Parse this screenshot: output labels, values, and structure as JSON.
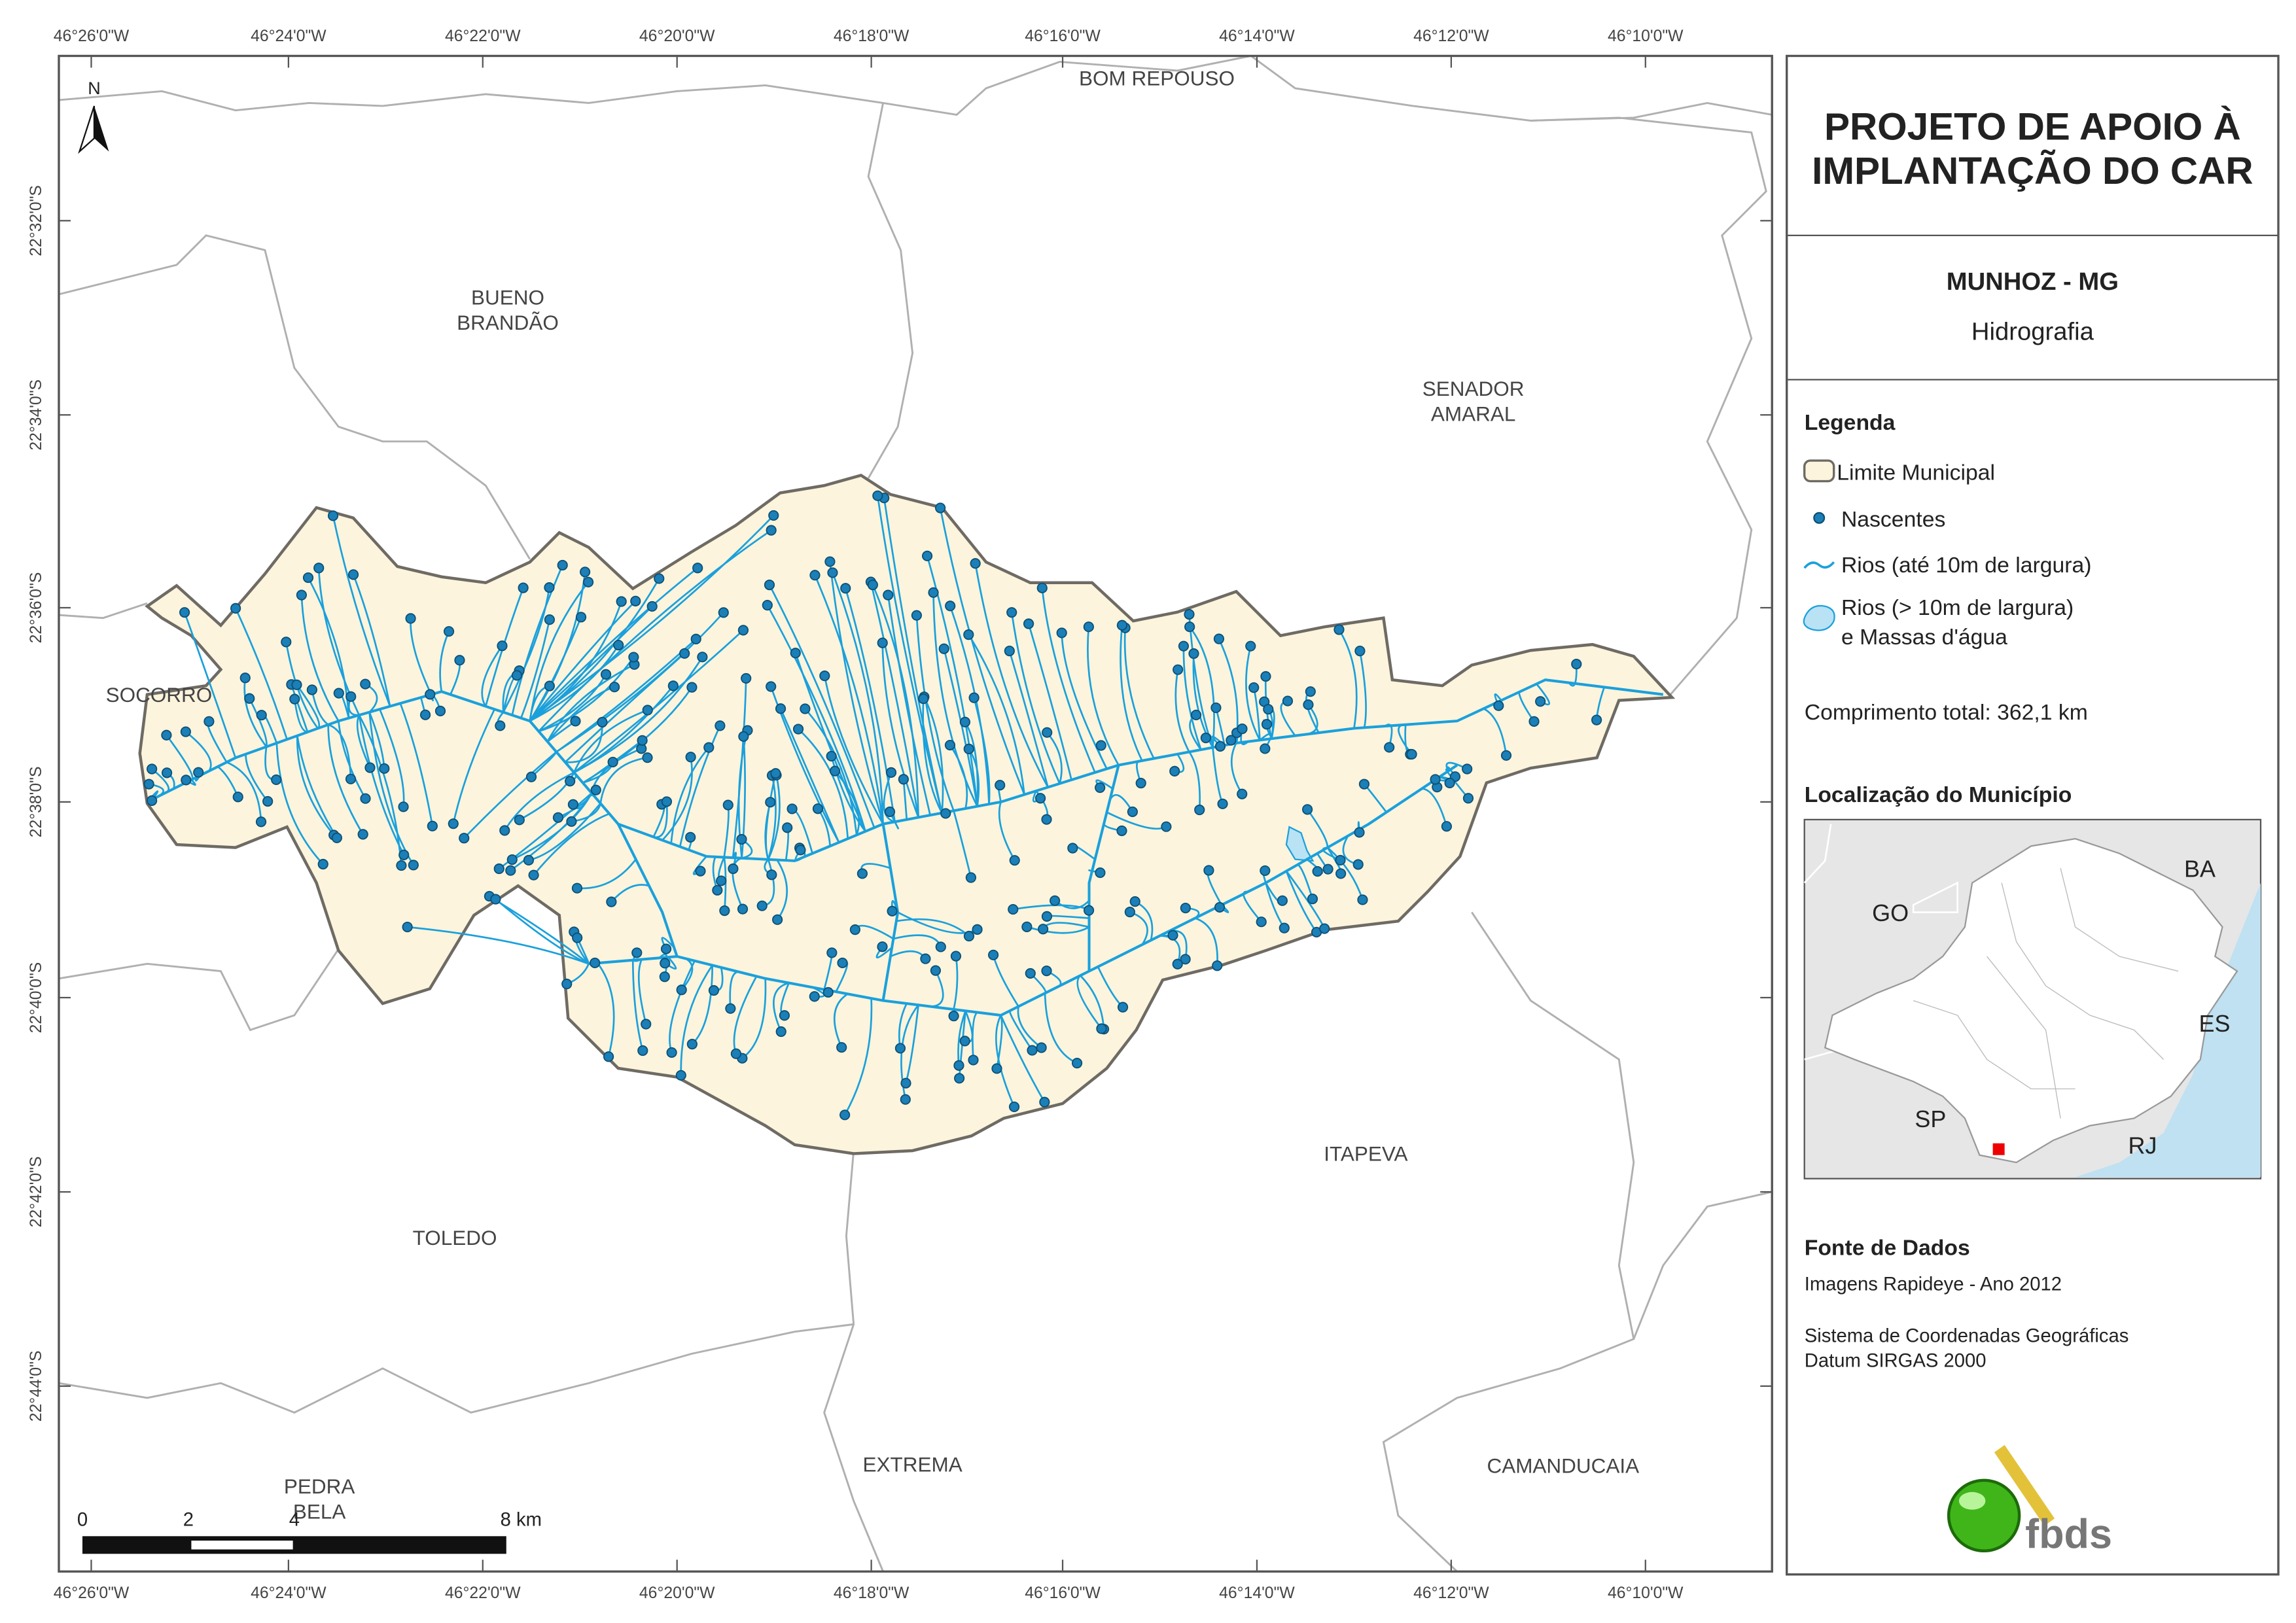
{
  "map": {
    "north": "N",
    "longitude_labels": [
      "46°26'0\"W",
      "46°24'0\"W",
      "46°22'0\"W",
      "46°20'0\"W",
      "46°18'0\"W",
      "46°16'0\"W",
      "46°14'0\"W",
      "46°12'0\"W",
      "46°10'0\"W"
    ],
    "latitude_labels": [
      "22°32'0\"S",
      "22°34'0\"S",
      "22°36'0\"S",
      "22°38'0\"S",
      "22°40'0\"S",
      "22°42'0\"S",
      "22°44'0\"S"
    ],
    "places": [
      [
        "BOM REPOUSO"
      ],
      [
        "BUENO",
        "BRANDÃO"
      ],
      [
        "SENADOR",
        "AMARAL"
      ],
      [
        "SOCORRO"
      ],
      [
        "ITAPEVA"
      ],
      [
        "TOLEDO"
      ],
      [
        "PEDRA",
        "BELA"
      ],
      [
        "EXTREMA"
      ],
      [
        "CAMANDUCAIA"
      ]
    ],
    "scale_bar": [
      "0",
      "2",
      "4",
      "8 km"
    ]
  },
  "panel": {
    "title": [
      "PROJETO DE APOIO À",
      "IMPLANTAÇÃO DO CAR"
    ],
    "municipality": "MUNHOZ - MG",
    "theme": "Hidrografia",
    "legend": {
      "title": "Legenda",
      "items": [
        [
          "Limite Municipal"
        ],
        [
          "Nascentes"
        ],
        [
          "Rios (até 10m de largura)"
        ],
        [
          "Rios (> 10m de largura)",
          "e Massas d'água"
        ]
      ],
      "total": "Comprimento total:  362,1 km"
    },
    "location": {
      "title": "Localização do Município",
      "labels": [
        "BA",
        "GO",
        "ES",
        "SP",
        "RJ"
      ]
    },
    "sources": {
      "title": "Fonte de Dados",
      "lines": [
        "Imagens Rapideye - Ano 2012",
        "Sistema de Coordenadas Geográficas",
        "Datum SIRGAS 2000"
      ]
    },
    "logo": "fbds"
  }
}
